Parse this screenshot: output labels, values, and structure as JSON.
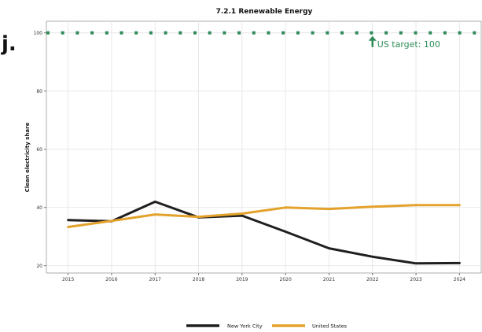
{
  "panel_tag": "j.",
  "chart_data": {
    "type": "line",
    "title": "7.2.1 Renewable Energy",
    "xlabel": "",
    "ylabel": "Clean electricity share",
    "x": [
      2015,
      2016,
      2017,
      2018,
      2019,
      2020,
      2021,
      2022,
      2023,
      2024
    ],
    "xlim": [
      2014.5,
      2024.5
    ],
    "ylim": [
      17.5,
      104
    ],
    "yticks": [
      20,
      40,
      60,
      80,
      100
    ],
    "grid": true,
    "legend_position": "bottom",
    "series": [
      {
        "name": "New York City",
        "color": "#1f1f1f",
        "values": [
          35.7,
          35.3,
          42.0,
          36.6,
          37.2,
          31.7,
          26.0,
          23.1,
          20.8,
          20.9
        ]
      },
      {
        "name": "United States",
        "color": "#e3a22b",
        "values": [
          33.3,
          35.4,
          37.6,
          36.8,
          37.9,
          40.0,
          39.5,
          40.3,
          40.8,
          40.8
        ]
      }
    ],
    "target": {
      "value": 100,
      "color": "#2e8b57",
      "label": "US target: 100",
      "x": 2022
    }
  }
}
